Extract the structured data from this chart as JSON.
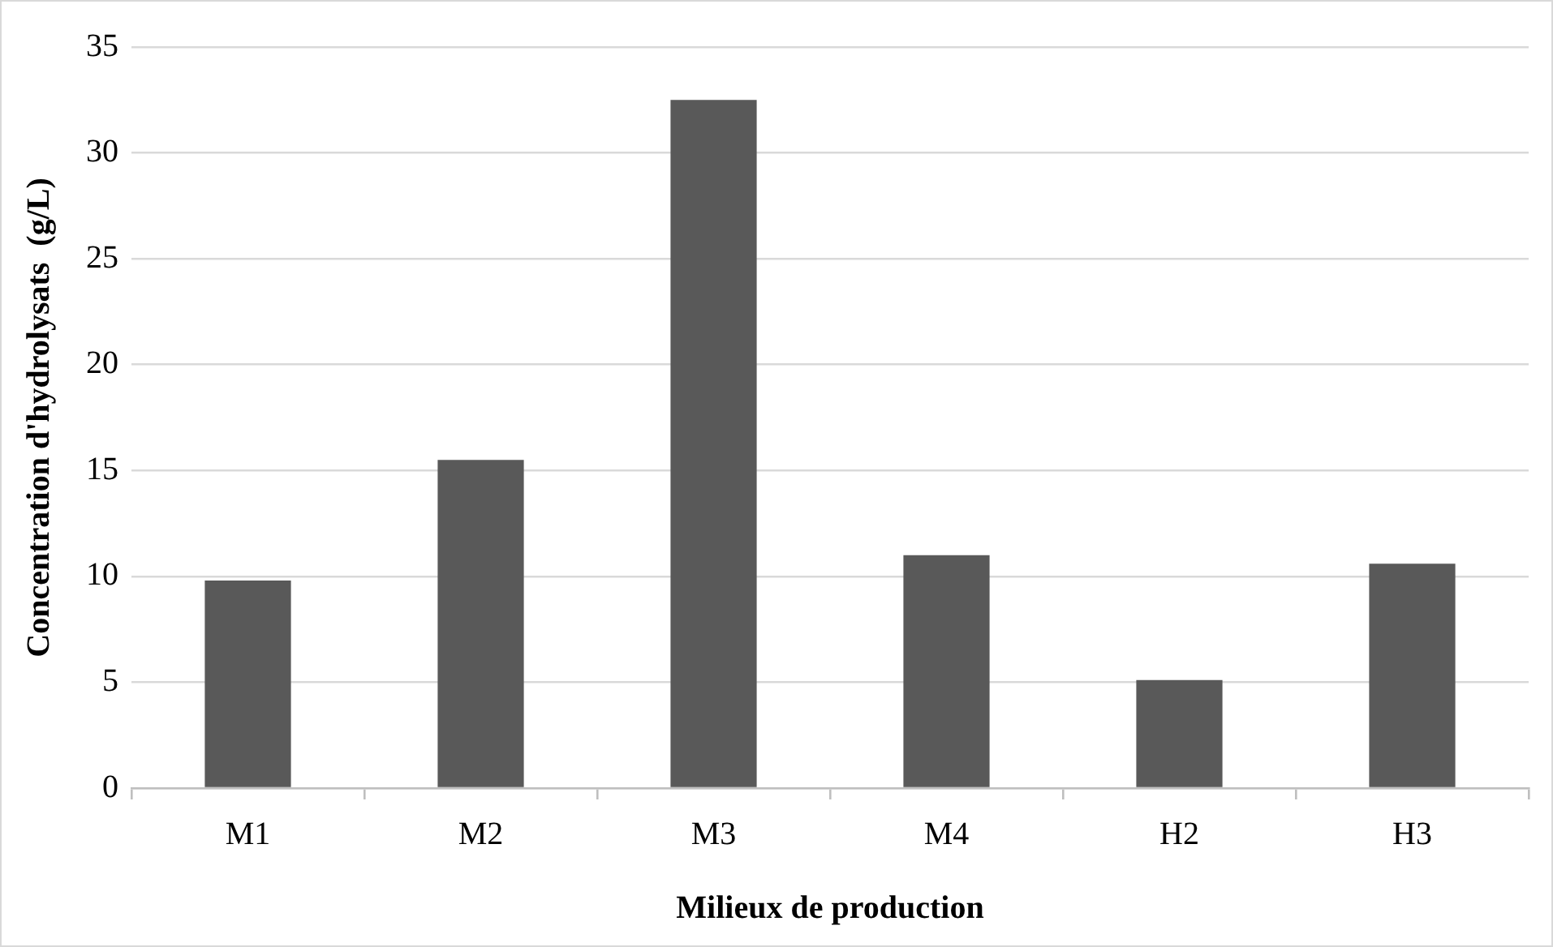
{
  "chart_data": {
    "type": "bar",
    "xlabel": "Milieux de production",
    "ylabel": "Concentration d'hydrolysats  (g/L)",
    "categories": [
      "M1",
      "M2",
      "M3",
      "M4",
      "H2",
      "H3"
    ],
    "values": [
      9.8,
      15.5,
      32.5,
      11,
      5.1,
      10.6
    ],
    "color": "#595959",
    "ylim": [
      0,
      35
    ],
    "yticks": [
      0,
      5,
      10,
      15,
      20,
      25,
      30,
      35
    ],
    "grid": "y"
  }
}
